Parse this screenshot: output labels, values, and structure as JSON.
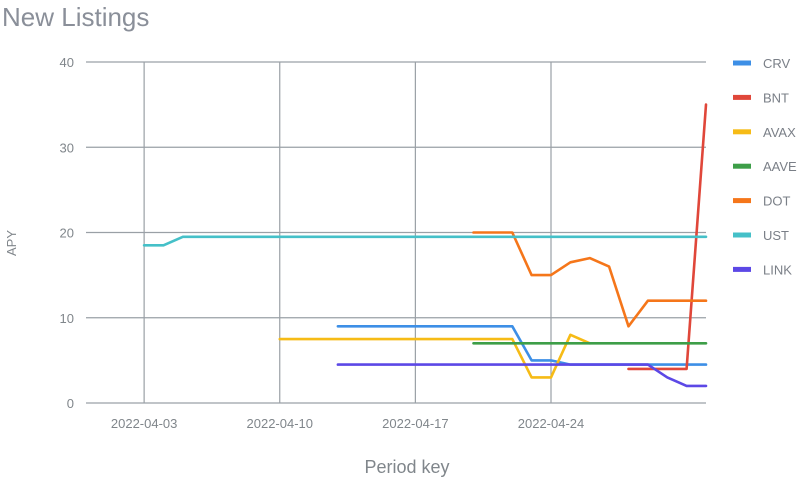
{
  "chart_data": {
    "type": "line",
    "title": "New Listings",
    "xlabel": "Period key",
    "ylabel": "APY",
    "ylim": [
      0,
      40
    ],
    "yticks": [
      0,
      10,
      20,
      30,
      40
    ],
    "xrange": [
      "2022-03-31",
      "2022-05-02"
    ],
    "xticks": [
      "2022-04-03",
      "2022-04-10",
      "2022-04-17",
      "2022-04-24"
    ],
    "grid": true,
    "legend_position": "right",
    "series": [
      {
        "name": "CRV",
        "color": "#3d8fe6",
        "x": [
          "2022-04-13",
          "2022-04-14",
          "2022-04-15",
          "2022-04-16",
          "2022-04-17",
          "2022-04-18",
          "2022-04-19",
          "2022-04-20",
          "2022-04-21",
          "2022-04-22",
          "2022-04-23",
          "2022-04-24",
          "2022-04-25",
          "2022-04-26",
          "2022-04-27",
          "2022-04-28",
          "2022-04-29",
          "2022-04-30",
          "2022-05-01",
          "2022-05-02"
        ],
        "values": [
          9,
          9,
          9,
          9,
          9,
          9,
          9,
          9,
          9,
          9,
          5,
          5,
          4.5,
          4.5,
          4.5,
          4.5,
          4.5,
          4.5,
          4.5,
          4.5
        ]
      },
      {
        "name": "BNT",
        "color": "#e0473a",
        "x": [
          "2022-04-28",
          "2022-04-29",
          "2022-04-30",
          "2022-05-01",
          "2022-05-02"
        ],
        "values": [
          4,
          4,
          4,
          4,
          35
        ]
      },
      {
        "name": "AVAX",
        "color": "#f6bb16",
        "x": [
          "2022-04-10",
          "2022-04-11",
          "2022-04-12",
          "2022-04-13",
          "2022-04-14",
          "2022-04-15",
          "2022-04-16",
          "2022-04-17",
          "2022-04-18",
          "2022-04-19",
          "2022-04-20",
          "2022-04-21",
          "2022-04-22",
          "2022-04-23",
          "2022-04-24",
          "2022-04-25",
          "2022-04-26"
        ],
        "values": [
          7.5,
          7.5,
          7.5,
          7.5,
          7.5,
          7.5,
          7.5,
          7.5,
          7.5,
          7.5,
          7.5,
          7.5,
          7.5,
          3,
          3,
          8,
          7
        ]
      },
      {
        "name": "AAVE",
        "color": "#3d9e48",
        "x": [
          "2022-04-20",
          "2022-04-21",
          "2022-04-22",
          "2022-04-23",
          "2022-04-24",
          "2022-04-25",
          "2022-04-26",
          "2022-04-27",
          "2022-04-28",
          "2022-04-29",
          "2022-04-30",
          "2022-05-01",
          "2022-05-02"
        ],
        "values": [
          7,
          7,
          7,
          7,
          7,
          7,
          7,
          7,
          7,
          7,
          7,
          7,
          7
        ]
      },
      {
        "name": "DOT",
        "color": "#f5761a",
        "x": [
          "2022-04-20",
          "2022-04-21",
          "2022-04-22",
          "2022-04-23",
          "2022-04-24",
          "2022-04-25",
          "2022-04-26",
          "2022-04-27",
          "2022-04-28",
          "2022-04-29",
          "2022-04-30",
          "2022-05-01",
          "2022-05-02"
        ],
        "values": [
          20,
          20,
          20,
          15,
          15,
          16.5,
          17,
          16,
          9,
          12,
          12,
          12,
          12
        ]
      },
      {
        "name": "UST",
        "color": "#45c0c8",
        "x": [
          "2022-04-03",
          "2022-04-04",
          "2022-04-05",
          "2022-04-06",
          "2022-04-13",
          "2022-04-20",
          "2022-04-27",
          "2022-05-02"
        ],
        "values": [
          18.5,
          18.5,
          19.5,
          19.5,
          19.5,
          19.5,
          19.5,
          19.5
        ]
      },
      {
        "name": "LINK",
        "color": "#5c48e6",
        "x": [
          "2022-04-13",
          "2022-04-16",
          "2022-04-20",
          "2022-04-24",
          "2022-04-28",
          "2022-04-29",
          "2022-04-30",
          "2022-05-01",
          "2022-05-02"
        ],
        "values": [
          4.5,
          4.5,
          4.5,
          4.5,
          4.5,
          4.5,
          3,
          2,
          2
        ]
      }
    ]
  }
}
